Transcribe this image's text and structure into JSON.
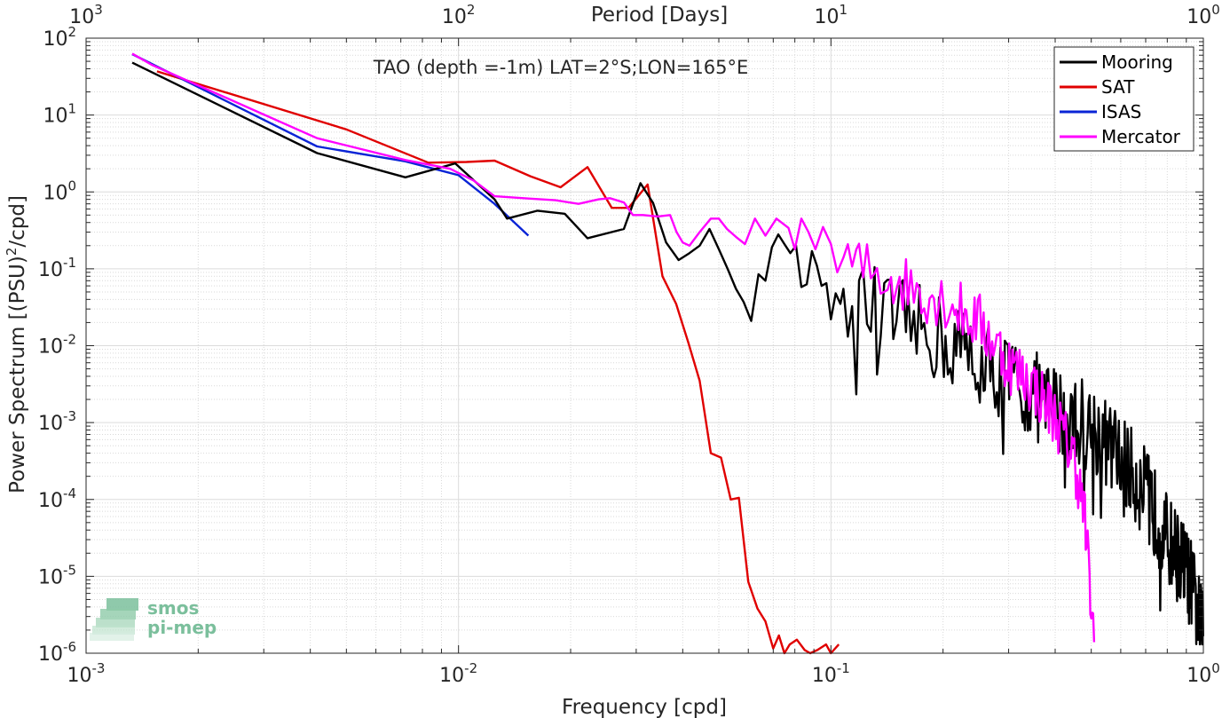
{
  "chart_data": {
    "type": "line",
    "title": "TAO (depth =-1m) LAT=2°S;LON=165°E",
    "xlabel": "Frequency [cpd]",
    "ylabel": "Power Spectrum [(PSU)^2/cpd]",
    "top_xlabel": "Period [Days]",
    "xscale": "log",
    "yscale": "log",
    "xlim": [
      0.001,
      1
    ],
    "ylim": [
      1e-06,
      100
    ],
    "x_ticks": [
      {
        "base": "10",
        "exp": "-3"
      },
      {
        "base": "10",
        "exp": "-2"
      },
      {
        "base": "10",
        "exp": "-1"
      },
      {
        "base": "10",
        "exp": "0"
      }
    ],
    "top_ticks": [
      {
        "base": "10",
        "exp": "3"
      },
      {
        "base": "10",
        "exp": "2"
      },
      {
        "base": "10",
        "exp": "1"
      },
      {
        "base": "10",
        "exp": "0"
      }
    ],
    "y_ticks": [
      {
        "base": "10",
        "exp": "2"
      },
      {
        "base": "10",
        "exp": "1"
      },
      {
        "base": "10",
        "exp": "0"
      },
      {
        "base": "10",
        "exp": "-1"
      },
      {
        "base": "10",
        "exp": "-2"
      },
      {
        "base": "10",
        "exp": "-3"
      },
      {
        "base": "10",
        "exp": "-4"
      },
      {
        "base": "10",
        "exp": "-5"
      },
      {
        "base": "10",
        "exp": "-6"
      }
    ],
    "grid": true,
    "legend_position": "top-right",
    "series": [
      {
        "name": "Mooring",
        "color": "#000000",
        "x": [],
        "y": []
      },
      {
        "name": "SAT",
        "color": "#e00000",
        "x": [],
        "y": []
      },
      {
        "name": "ISAS",
        "color": "#0a24d6",
        "x": [],
        "y": []
      },
      {
        "name": "Mercator",
        "color": "#ff00ff",
        "x": [],
        "y": []
      }
    ]
  },
  "logo": {
    "line1": "smos",
    "line2": "pi-mep"
  }
}
